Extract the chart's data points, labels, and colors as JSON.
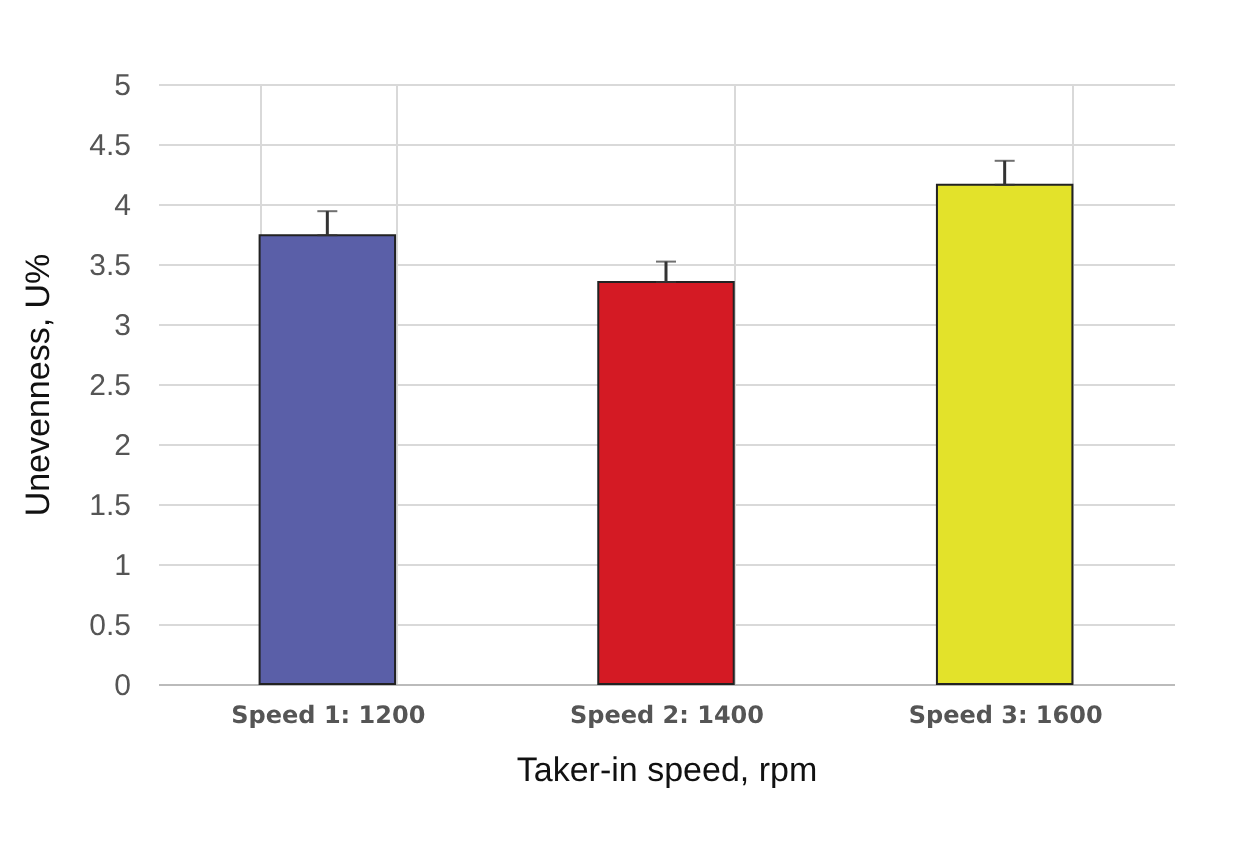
{
  "chart_data": {
    "type": "bar",
    "xlabel": "Taker-in speed, rpm",
    "ylabel": "Unevenness, U%",
    "categories": [
      "Speed 1: 1200",
      "Speed 2: 1400",
      "Speed 3: 1600"
    ],
    "values": [
      3.74,
      3.35,
      4.16
    ],
    "colors": [
      "#5a5fa8",
      "#d41a24",
      "#e3e22a"
    ],
    "errors": [
      [
        3.74,
        3.94
      ],
      [
        3.35,
        3.52
      ],
      [
        4.16,
        4.36
      ]
    ],
    "ylim": [
      0,
      5
    ],
    "yticks": [
      0,
      0.5,
      1,
      1.5,
      2,
      2.5,
      3,
      3.5,
      4,
      4.5,
      5
    ],
    "grid": true
  }
}
